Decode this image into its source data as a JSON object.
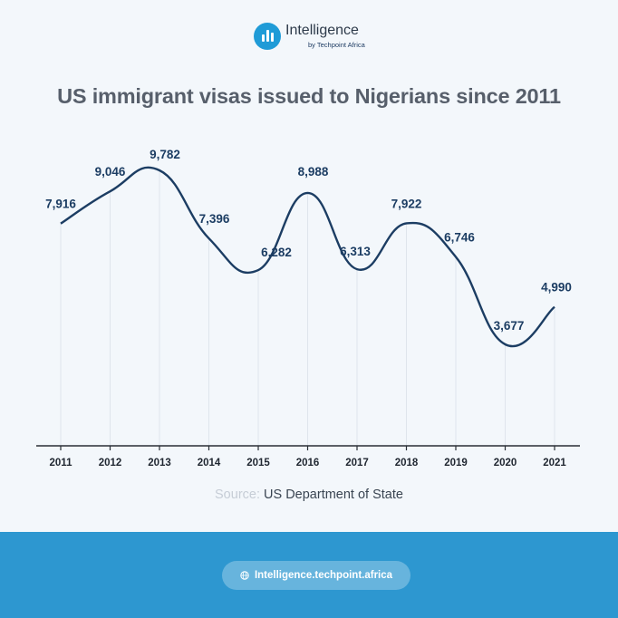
{
  "brand": {
    "name": "Intelligence",
    "subtitle": "by Techpoint Africa",
    "icon": "bar-chart-icon"
  },
  "title": "US immigrant visas issued to Nigerians since 2011",
  "source": {
    "label": "Source:",
    "value": "US Department of State"
  },
  "footer": {
    "link_text": "Intelligence.techpoint.africa",
    "icon": "globe-icon",
    "background": "#2d97d0"
  },
  "colors": {
    "line": "#1c3d63",
    "label": "#1c3d63",
    "gridline": "#dfe5ec",
    "axis": "#2a2f36",
    "accent": "#1f9bd7"
  },
  "chart_data": {
    "type": "line",
    "title": "US immigrant visas issued to Nigerians since 2011",
    "categories": [
      "2011",
      "2012",
      "2013",
      "2014",
      "2015",
      "2016",
      "2017",
      "2018",
      "2019",
      "2020",
      "2021"
    ],
    "values": [
      7916,
      9046,
      9782,
      7396,
      6282,
      8988,
      6313,
      7922,
      6746,
      3677,
      4990
    ],
    "value_labels": [
      "7,916",
      "9,046",
      "9,782",
      "7,396",
      "6,282",
      "8,988",
      "6,313",
      "7,922",
      "6,746",
      "3,677",
      "4,990"
    ],
    "xlabel": "",
    "ylabel": "",
    "ylim": [
      0,
      10000
    ],
    "grid": "vertical",
    "legend": "none",
    "smooth": true
  }
}
